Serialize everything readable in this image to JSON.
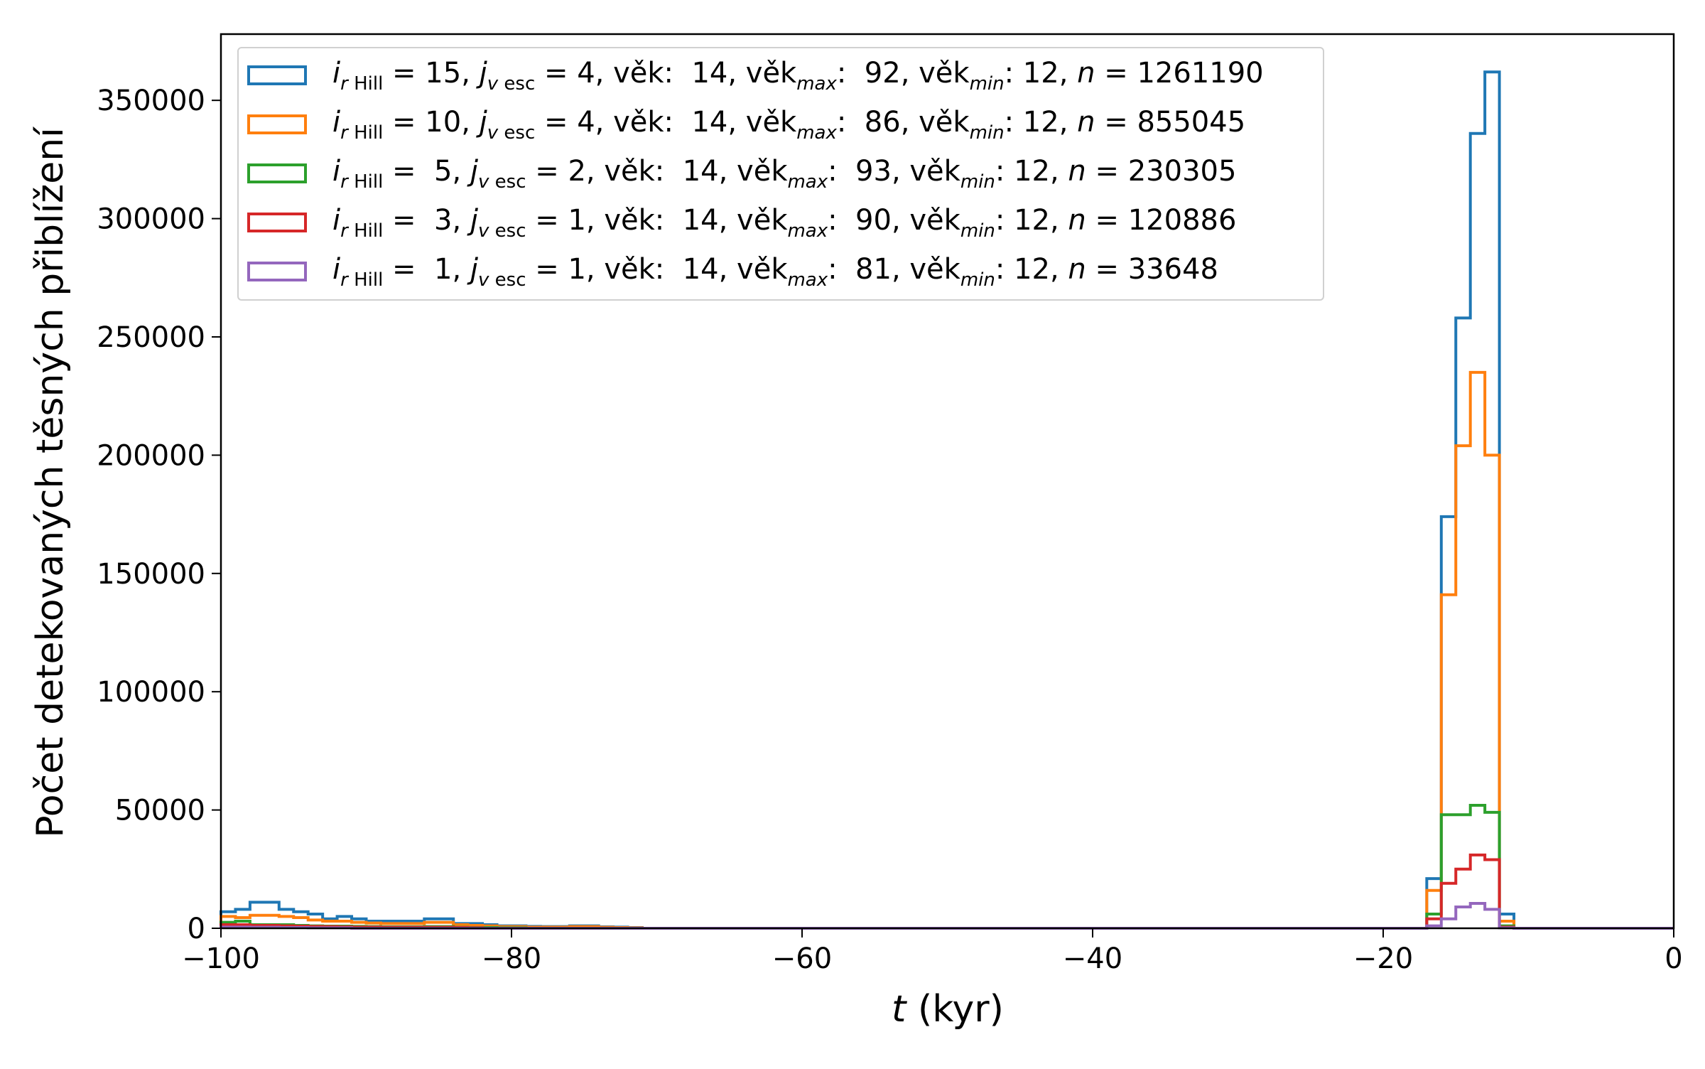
{
  "chart_data": {
    "type": "histogram-step",
    "xlabel_var": "t",
    "xlabel_unit": " (kyr)",
    "ylabel": "Počet detekovaných těsných přiblížení",
    "xlim": [
      -100,
      0
    ],
    "ylim": [
      0,
      378000
    ],
    "xticks": [
      -100,
      -80,
      -60,
      -40,
      -20,
      0
    ],
    "xtick_labels": [
      "−100",
      "−80",
      "−60",
      "−40",
      "−20",
      "0"
    ],
    "yticks": [
      0,
      50000,
      100000,
      150000,
      200000,
      250000,
      300000,
      350000
    ],
    "ytick_labels": [
      "0",
      "50000",
      "100000",
      "150000",
      "200000",
      "250000",
      "300000",
      "350000"
    ],
    "bin_width": 1,
    "legend_position": "top-left",
    "grid": false,
    "series": [
      {
        "r": "15",
        "j": "4",
        "vek": "14",
        "vekmax": "92",
        "vekmin": "12",
        "n": "1261190",
        "color": "#1f77b4",
        "bins": [
          [
            -100,
            7000
          ],
          [
            -99,
            8000
          ],
          [
            -98,
            11000
          ],
          [
            -97,
            11000
          ],
          [
            -96,
            8000
          ],
          [
            -95,
            7000
          ],
          [
            -94,
            6000
          ],
          [
            -93,
            4000
          ],
          [
            -92,
            5000
          ],
          [
            -91,
            4000
          ],
          [
            -90,
            3000
          ],
          [
            -89,
            3000
          ],
          [
            -88,
            3000
          ],
          [
            -87,
            3000
          ],
          [
            -86,
            4000
          ],
          [
            -85,
            4000
          ],
          [
            -84,
            2000
          ],
          [
            -83,
            2000
          ],
          [
            -82,
            1500
          ],
          [
            -81,
            1000
          ],
          [
            -80,
            1000
          ],
          [
            -79,
            800
          ],
          [
            -78,
            700
          ],
          [
            -77,
            700
          ],
          [
            -76,
            1000
          ],
          [
            -75,
            1000
          ],
          [
            -74,
            600
          ],
          [
            -73,
            500
          ],
          [
            -72,
            300
          ],
          [
            -17,
            21000
          ],
          [
            -16,
            174000
          ],
          [
            -15,
            258000
          ],
          [
            -14,
            336000
          ],
          [
            -13,
            362000
          ],
          [
            -12,
            6000
          ]
        ]
      },
      {
        "r": "10",
        "j": "4",
        "vek": "14",
        "vekmax": "86",
        "vekmin": "12",
        "n": "855045",
        "color": "#ff7f0e",
        "bins": [
          [
            -100,
            5000
          ],
          [
            -99,
            4500
          ],
          [
            -98,
            5500
          ],
          [
            -97,
            5500
          ],
          [
            -96,
            5000
          ],
          [
            -95,
            4500
          ],
          [
            -94,
            3500
          ],
          [
            -93,
            3000
          ],
          [
            -92,
            3000
          ],
          [
            -91,
            2500
          ],
          [
            -90,
            2200
          ],
          [
            -89,
            2000
          ],
          [
            -88,
            2000
          ],
          [
            -87,
            2000
          ],
          [
            -86,
            2500
          ],
          [
            -85,
            2500
          ],
          [
            -84,
            1500
          ],
          [
            -83,
            1200
          ],
          [
            -82,
            1000
          ],
          [
            -81,
            700
          ],
          [
            -80,
            700
          ],
          [
            -79,
            500
          ],
          [
            -78,
            500
          ],
          [
            -77,
            500
          ],
          [
            -76,
            700
          ],
          [
            -75,
            700
          ],
          [
            -74,
            400
          ],
          [
            -73,
            300
          ],
          [
            -72,
            200
          ],
          [
            -17,
            16000
          ],
          [
            -16,
            141000
          ],
          [
            -15,
            204000
          ],
          [
            -14,
            235000
          ],
          [
            -13,
            200000
          ],
          [
            -12,
            3000
          ]
        ]
      },
      {
        "r": " 5",
        "j": "2",
        "vek": "14",
        "vekmax": "93",
        "vekmin": "12",
        "n": "230305",
        "color": "#2ca02c",
        "bins": [
          [
            -100,
            2500
          ],
          [
            -99,
            3000
          ],
          [
            -98,
            1500
          ],
          [
            -97,
            1500
          ],
          [
            -96,
            1500
          ],
          [
            -95,
            1200
          ],
          [
            -94,
            1000
          ],
          [
            -93,
            900
          ],
          [
            -92,
            900
          ],
          [
            -91,
            800
          ],
          [
            -90,
            700
          ],
          [
            -89,
            600
          ],
          [
            -88,
            600
          ],
          [
            -87,
            600
          ],
          [
            -86,
            700
          ],
          [
            -85,
            700
          ],
          [
            -84,
            400
          ],
          [
            -83,
            300
          ],
          [
            -82,
            300
          ],
          [
            -81,
            200
          ],
          [
            -80,
            200
          ],
          [
            -17,
            6000
          ],
          [
            -16,
            48000
          ],
          [
            -15,
            48000
          ],
          [
            -14,
            52000
          ],
          [
            -13,
            49000
          ],
          [
            -12,
            1000
          ]
        ]
      },
      {
        "r": " 3",
        "j": "1",
        "vek": "14",
        "vekmax": "90",
        "vekmin": "12",
        "n": "120886",
        "color": "#d62728",
        "bins": [
          [
            -100,
            1500
          ],
          [
            -99,
            1500
          ],
          [
            -98,
            1200
          ],
          [
            -97,
            1200
          ],
          [
            -96,
            1000
          ],
          [
            -95,
            900
          ],
          [
            -94,
            800
          ],
          [
            -93,
            700
          ],
          [
            -92,
            600
          ],
          [
            -91,
            500
          ],
          [
            -90,
            500
          ],
          [
            -89,
            400
          ],
          [
            -88,
            400
          ],
          [
            -87,
            400
          ],
          [
            -86,
            400
          ],
          [
            -85,
            400
          ],
          [
            -84,
            300
          ],
          [
            -83,
            200
          ],
          [
            -17,
            4000
          ],
          [
            -16,
            19000
          ],
          [
            -15,
            25000
          ],
          [
            -14,
            31000
          ],
          [
            -13,
            29000
          ],
          [
            -12,
            500
          ]
        ]
      },
      {
        "r": " 1",
        "j": "1",
        "vek": "14",
        "vekmax": "81",
        "vekmin": "12",
        "n": "33648",
        "color": "#9467bd",
        "bins": [
          [
            -100,
            500
          ],
          [
            -99,
            500
          ],
          [
            -98,
            400
          ],
          [
            -97,
            400
          ],
          [
            -96,
            300
          ],
          [
            -95,
            300
          ],
          [
            -94,
            200
          ],
          [
            -93,
            200
          ],
          [
            -92,
            200
          ],
          [
            -17,
            1000
          ],
          [
            -16,
            4000
          ],
          [
            -15,
            9000
          ],
          [
            -14,
            10500
          ],
          [
            -13,
            8000
          ],
          [
            -12,
            200
          ]
        ]
      }
    ]
  }
}
